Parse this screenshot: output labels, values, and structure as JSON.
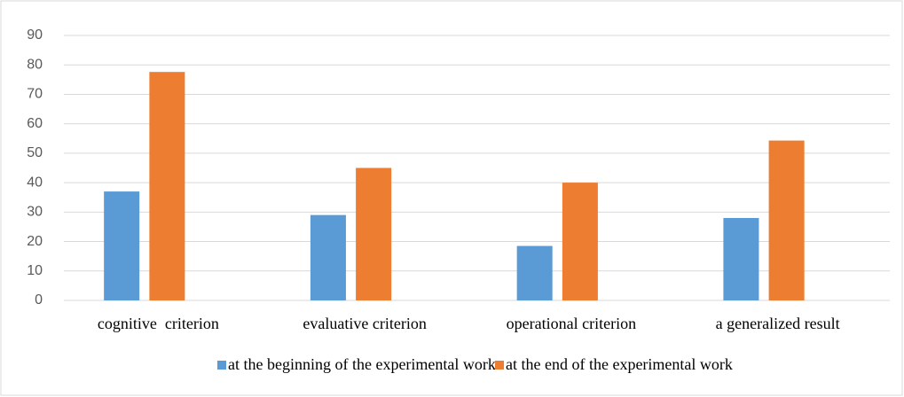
{
  "chart_data": {
    "type": "bar",
    "categories": [
      "cognitive  criterion",
      "evaluative criterion",
      "operational criterion",
      "a generalized result"
    ],
    "series": [
      {
        "name": "at the beginning of the experimental work",
        "color": "#5b9bd5",
        "values": [
          37,
          29,
          18.5,
          28
        ]
      },
      {
        "name": "at the end of the experimental work",
        "color": "#ed7d31",
        "values": [
          77.6,
          45,
          40,
          54.3
        ]
      }
    ],
    "ylim": [
      0,
      90
    ],
    "yticks": [
      0,
      10,
      20,
      30,
      40,
      50,
      60,
      70,
      80,
      90
    ],
    "grid": true,
    "legend": "bottom"
  }
}
